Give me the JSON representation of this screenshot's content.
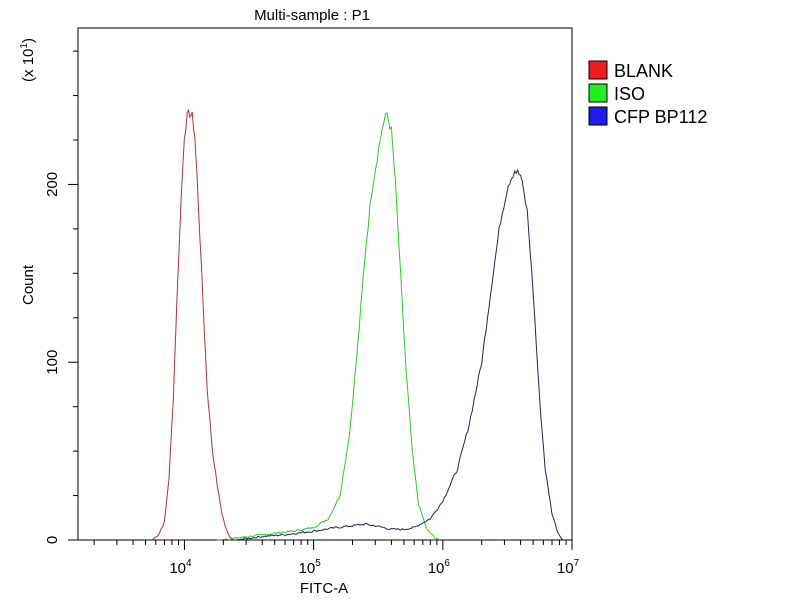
{
  "chart_data": {
    "type": "line",
    "title": "Multi-sample : P1",
    "xlabel": "FITC-A",
    "ylabel": "Count",
    "y_multiplier_label": "(x 10",
    "y_multiplier_exp": "1",
    "y_multiplier_close": ")",
    "x_scale": "log",
    "xlim": [
      1500,
      10000000
    ],
    "ylim": [
      0,
      288
    ],
    "x_ticks": [
      {
        "value": 10000,
        "base": "10",
        "exp": "4"
      },
      {
        "value": 100000,
        "base": "10",
        "exp": "5"
      },
      {
        "value": 1000000,
        "base": "10",
        "exp": "6"
      },
      {
        "value": 10000000,
        "base": "10",
        "exp": "7"
      }
    ],
    "y_ticks": [
      {
        "value": 0,
        "label": "0"
      },
      {
        "value": 100,
        "label": "100"
      },
      {
        "value": 200,
        "label": "200"
      }
    ],
    "legend_position": "right",
    "series": [
      {
        "name": "BLANK",
        "color": "#b03030",
        "swatch": "#ee1c1c",
        "x": [
          5600,
          6300,
          7000,
          7600,
          8200,
          8800,
          9400,
          10000,
          10500,
          11000,
          11500,
          12000,
          12500,
          13200,
          14000,
          15000,
          16500,
          18000,
          19500,
          21000,
          22500,
          24000
        ],
        "y": [
          0,
          3,
          10,
          35,
          80,
          140,
          190,
          228,
          238,
          240,
          238,
          228,
          205,
          170,
          130,
          85,
          50,
          30,
          15,
          6,
          2,
          0
        ]
      },
      {
        "name": "ISO",
        "color": "#22cc22",
        "swatch": "#22ee22",
        "x": [
          18000,
          25000,
          40000,
          70000,
          100000,
          130000,
          160000,
          190000,
          220000,
          250000,
          280000,
          310000,
          340000,
          370000,
          400000,
          430000,
          470000,
          520000,
          580000,
          650000,
          750000,
          850000,
          950000
        ],
        "y": [
          0,
          1,
          3,
          5,
          7,
          12,
          25,
          60,
          110,
          160,
          195,
          215,
          232,
          240,
          230,
          200,
          150,
          95,
          50,
          20,
          6,
          2,
          0
        ]
      },
      {
        "name": "CFP BP112",
        "color": "#22226e",
        "swatch": "#1c1cee",
        "x": [
          25000,
          40000,
          60000,
          100000,
          150000,
          200000,
          250000,
          300000,
          400000,
          500000,
          600000,
          800000,
          1000000,
          1300000,
          1600000,
          2000000,
          2400000,
          2800000,
          3200000,
          3600000,
          4000000,
          4500000,
          5000000,
          5600000,
          6200000,
          7000000,
          7800000,
          8500000
        ],
        "y": [
          0,
          2,
          3,
          5,
          7,
          8,
          9,
          8,
          6,
          6,
          7,
          12,
          22,
          40,
          65,
          100,
          145,
          180,
          200,
          208,
          205,
          185,
          140,
          80,
          40,
          15,
          4,
          0
        ]
      }
    ]
  }
}
